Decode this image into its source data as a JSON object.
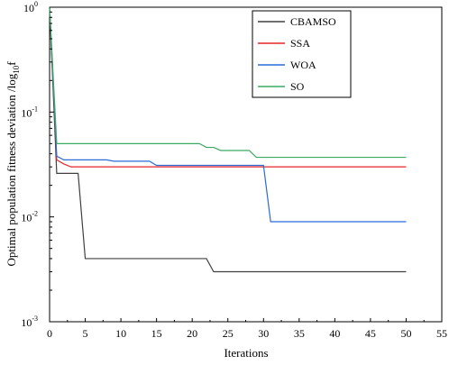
{
  "chart_data": {
    "type": "line",
    "xlabel": "Iterations",
    "ylabel": "Optimal population fitness deviation /log",
    "ylabel_sub": "10",
    "ylabel_tail": "f",
    "xlim": [
      0,
      55
    ],
    "ylim": [
      0.001,
      1
    ],
    "yscale": "log",
    "grid": false,
    "legend_position": "top-right",
    "x_ticks": [
      0,
      5,
      10,
      15,
      20,
      25,
      30,
      35,
      40,
      45,
      50,
      55
    ],
    "x_tick_labels": [
      "0",
      "5",
      "10",
      "15",
      "20",
      "25",
      "30",
      "35",
      "40",
      "45",
      "50",
      "55"
    ],
    "y_ticks": [
      {
        "value": 1,
        "base": "10",
        "exp": "0"
      },
      {
        "value": 0.1,
        "base": "10",
        "exp": "-1"
      },
      {
        "value": 0.01,
        "base": "10",
        "exp": "-2"
      },
      {
        "value": 0.001,
        "base": "10",
        "exp": "-3"
      }
    ],
    "series": [
      {
        "name": "CBAMSO",
        "color": "#404040",
        "points": [
          [
            0,
            1.0
          ],
          [
            1,
            0.026
          ],
          [
            4,
            0.026
          ],
          [
            5,
            0.004
          ],
          [
            22,
            0.004
          ],
          [
            23,
            0.003
          ],
          [
            50,
            0.003
          ]
        ]
      },
      {
        "name": "SSA",
        "color": "#e8252a",
        "points": [
          [
            0,
            1.0
          ],
          [
            1,
            0.035
          ],
          [
            2,
            0.032
          ],
          [
            3,
            0.03
          ],
          [
            50,
            0.03
          ]
        ]
      },
      {
        "name": "WOA",
        "color": "#2a6bd6",
        "points": [
          [
            0,
            1.0
          ],
          [
            1,
            0.038
          ],
          [
            2,
            0.035
          ],
          [
            8,
            0.035
          ],
          [
            9,
            0.034
          ],
          [
            14,
            0.034
          ],
          [
            15,
            0.031
          ],
          [
            30,
            0.031
          ],
          [
            31,
            0.009
          ],
          [
            50,
            0.009
          ]
        ]
      },
      {
        "name": "SO",
        "color": "#3aaa60",
        "points": [
          [
            0,
            1.0
          ],
          [
            1,
            0.05
          ],
          [
            21,
            0.05
          ],
          [
            22,
            0.046
          ],
          [
            23,
            0.046
          ],
          [
            24,
            0.043
          ],
          [
            28,
            0.043
          ],
          [
            29,
            0.037
          ],
          [
            50,
            0.037
          ]
        ]
      }
    ]
  }
}
